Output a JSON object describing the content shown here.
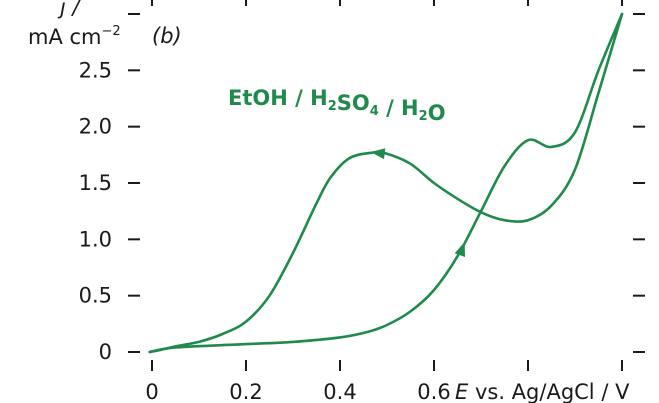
{
  "chart_data": {
    "type": "line",
    "panel_label": "(b)",
    "annotation": {
      "parts": [
        {
          "t": "EtOH / H",
          "sub": false
        },
        {
          "t": "2",
          "sub": true
        },
        {
          "t": "SO",
          "sub": false
        },
        {
          "t": "4",
          "sub": true
        },
        {
          "t": " / H",
          "sub": false
        },
        {
          "t": "2",
          "sub": true
        },
        {
          "t": "O",
          "sub": false
        }
      ]
    },
    "ylabel_line1": "j /",
    "ylabel_line2": "mA cm",
    "ylabel_sup": "−2",
    "xlabel_prefix": "E",
    "xlabel_suffix": " vs. Ag/AgCl / V",
    "xlim": [
      0,
      1.0
    ],
    "ylim": [
      0,
      3.0
    ],
    "x_ticks": [
      0,
      0.2,
      0.4,
      0.6,
      0.8,
      1.0
    ],
    "x_tick_labels": [
      "0",
      "0.2",
      "0.4",
      "0.6",
      "",
      ""
    ],
    "y_ticks": [
      0,
      0.5,
      1.0,
      1.5,
      2.0,
      2.5,
      3.0
    ],
    "y_tick_labels": [
      "0",
      "0.5",
      "1.0",
      "1.5",
      "2.0",
      "2.5",
      ""
    ],
    "series": [
      {
        "x": [
          -0.005,
          0.05,
          0.2,
          0.3,
          0.4,
          0.46,
          0.5,
          0.55,
          0.6,
          0.65,
          0.7,
          0.75,
          0.8,
          0.85,
          0.9,
          0.95,
          1.0
        ],
        "y": [
          0.0,
          0.04,
          0.07,
          0.09,
          0.13,
          0.18,
          0.24,
          0.36,
          0.55,
          0.85,
          1.25,
          1.65,
          1.88,
          1.82,
          1.95,
          2.5,
          3.0
        ],
        "direction": "forward"
      },
      {
        "x": [
          1.0,
          0.95,
          0.9,
          0.85,
          0.8,
          0.75,
          0.7,
          0.65,
          0.6,
          0.55,
          0.5,
          0.47,
          0.42,
          0.38,
          0.35,
          0.3,
          0.25,
          0.2,
          0.15,
          0.1,
          0.05,
          0.02,
          -0.005
        ],
        "y": [
          3.0,
          2.3,
          1.62,
          1.3,
          1.17,
          1.17,
          1.24,
          1.36,
          1.5,
          1.67,
          1.76,
          1.77,
          1.72,
          1.55,
          1.32,
          0.88,
          0.5,
          0.27,
          0.16,
          0.09,
          0.05,
          0.02,
          0.0
        ],
        "direction": "reverse"
      }
    ],
    "arrows": [
      {
        "x": 0.655,
        "y": 0.86,
        "toward_x": 0.662,
        "toward_y": 0.94
      },
      {
        "x": 0.495,
        "y": 1.76,
        "toward_x": 0.475,
        "toward_y": 1.77
      }
    ],
    "colors": {
      "curve": "#1f8a4c",
      "axis": "#1a1a1a"
    }
  }
}
